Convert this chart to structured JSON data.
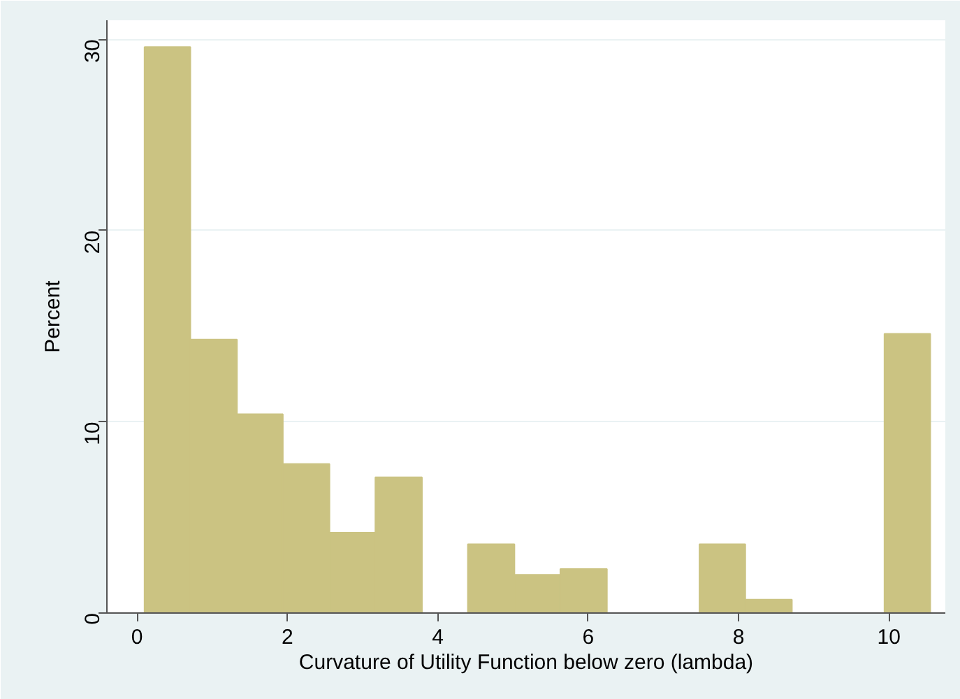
{
  "chart_data": {
    "type": "histogram",
    "xlabel": "Curvature of Utility Function below zero (lambda)",
    "ylabel": "Percent",
    "bins": [
      0.1,
      0.71,
      1.33,
      1.94,
      2.56,
      3.17,
      3.79,
      4.4,
      5.02,
      5.63,
      6.25,
      6.86,
      7.48,
      8.09,
      8.71,
      9.32,
      9.94,
      10.55
    ],
    "values": [
      29.6,
      14.3,
      10.4,
      7.8,
      4.2,
      7.1,
      0,
      3.6,
      2.0,
      2.3,
      0,
      0,
      3.6,
      0.7,
      0,
      0,
      14.6
    ],
    "color": "#cbc382",
    "xlim": [
      -0.4,
      10.75
    ],
    "ylim": [
      0,
      31
    ],
    "xticks": [
      0,
      2,
      4,
      6,
      8,
      10
    ],
    "yticks": [
      0,
      10,
      20,
      30
    ],
    "grid": "y"
  }
}
